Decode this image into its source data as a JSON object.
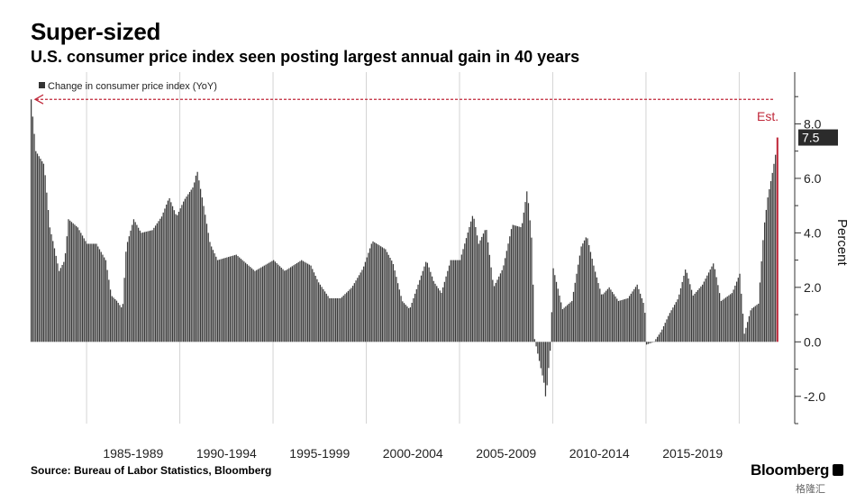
{
  "title": "Super-sized",
  "subtitle": "U.S. consumer price index seen posting largest annual gain in 40 years",
  "source": "Source: Bureau of Labor Statistics, Bloomberg",
  "brand": "Bloomberg",
  "watermark": "格隆汇",
  "colors": {
    "bar": "#3a3a3a",
    "accent": "#c0283a",
    "grid": "#d4d4d4",
    "axis": "#333333"
  },
  "chart_data": {
    "type": "bar",
    "title": "Super-sized",
    "subtitle": "U.S. consumer price index seen posting largest annual gain in 40 years",
    "legend": "Change in consumer price index (YoY)",
    "legend_position": "top-left",
    "ylabel": "Percent",
    "ylim": [
      -3.0,
      9.9
    ],
    "yticks": [
      -2,
      0,
      2,
      4,
      6,
      8
    ],
    "ytick_labels": [
      "-2.0",
      "0.0",
      "2.0",
      "4.0",
      "6.0",
      "8.0"
    ],
    "xlim": [
      1982.0,
      2022.3
    ],
    "xtick_positions": [
      1985,
      1990,
      1995,
      2000,
      2005,
      2010,
      2015,
      2020
    ],
    "period_labels": [
      "1985-1989",
      "1990-1994",
      "1995-1999",
      "2000-2004",
      "2005-2009",
      "2010-2014",
      "2015-2019"
    ],
    "period_centers": [
      1987.5,
      1992.5,
      1997.5,
      2002.5,
      2007.5,
      2012.5,
      2017.5
    ],
    "annotation": "Est.",
    "estimate_value": 7.5,
    "estimate_date": 2022.0,
    "reference_line": 8.9,
    "anchors": [
      [
        1982.0,
        8.9
      ],
      [
        1982.25,
        7.0
      ],
      [
        1982.7,
        6.5
      ],
      [
        1983.0,
        4.2
      ],
      [
        1983.2,
        3.6
      ],
      [
        1983.5,
        2.6
      ],
      [
        1983.8,
        3.0
      ],
      [
        1984.0,
        4.5
      ],
      [
        1984.5,
        4.2
      ],
      [
        1985.0,
        3.6
      ],
      [
        1985.5,
        3.6
      ],
      [
        1986.0,
        3.0
      ],
      [
        1986.3,
        1.7
      ],
      [
        1986.6,
        1.5
      ],
      [
        1986.9,
        1.2
      ],
      [
        1987.1,
        3.5
      ],
      [
        1987.5,
        4.5
      ],
      [
        1987.9,
        4.0
      ],
      [
        1988.5,
        4.1
      ],
      [
        1989.0,
        4.6
      ],
      [
        1989.4,
        5.3
      ],
      [
        1989.8,
        4.6
      ],
      [
        1990.2,
        5.2
      ],
      [
        1990.7,
        5.7
      ],
      [
        1990.9,
        6.3
      ],
      [
        1991.3,
        4.8
      ],
      [
        1991.6,
        3.6
      ],
      [
        1992.0,
        3.0
      ],
      [
        1993.0,
        3.2
      ],
      [
        1994.0,
        2.6
      ],
      [
        1995.0,
        3.0
      ],
      [
        1995.6,
        2.6
      ],
      [
        1996.5,
        3.0
      ],
      [
        1997.0,
        2.8
      ],
      [
        1997.4,
        2.2
      ],
      [
        1998.0,
        1.6
      ],
      [
        1998.6,
        1.6
      ],
      [
        1999.2,
        2.0
      ],
      [
        1999.8,
        2.7
      ],
      [
        2000.3,
        3.7
      ],
      [
        2001.0,
        3.4
      ],
      [
        2001.4,
        2.9
      ],
      [
        2001.9,
        1.5
      ],
      [
        2002.3,
        1.2
      ],
      [
        2002.7,
        2.0
      ],
      [
        2003.2,
        3.0
      ],
      [
        2003.6,
        2.2
      ],
      [
        2004.0,
        1.8
      ],
      [
        2004.5,
        3.0
      ],
      [
        2005.0,
        3.0
      ],
      [
        2005.7,
        4.7
      ],
      [
        2006.0,
        3.6
      ],
      [
        2006.4,
        4.2
      ],
      [
        2006.8,
        2.0
      ],
      [
        2007.3,
        2.7
      ],
      [
        2007.8,
        4.3
      ],
      [
        2008.3,
        4.2
      ],
      [
        2008.6,
        5.6
      ],
      [
        2008.85,
        3.7
      ],
      [
        2009.0,
        0.1
      ],
      [
        2009.5,
        -1.5
      ],
      [
        2009.6,
        -2.1
      ],
      [
        2009.85,
        -0.2
      ],
      [
        2010.0,
        2.7
      ],
      [
        2010.5,
        1.2
      ],
      [
        2011.0,
        1.5
      ],
      [
        2011.5,
        3.5
      ],
      [
        2011.8,
        3.9
      ],
      [
        2012.2,
        2.7
      ],
      [
        2012.6,
        1.7
      ],
      [
        2013.0,
        2.0
      ],
      [
        2013.5,
        1.5
      ],
      [
        2014.0,
        1.6
      ],
      [
        2014.5,
        2.1
      ],
      [
        2014.9,
        1.3
      ],
      [
        2015.0,
        -0.1
      ],
      [
        2015.4,
        0.0
      ],
      [
        2015.8,
        0.4
      ],
      [
        2016.2,
        1.0
      ],
      [
        2016.7,
        1.6
      ],
      [
        2017.1,
        2.7
      ],
      [
        2017.5,
        1.7
      ],
      [
        2018.0,
        2.1
      ],
      [
        2018.6,
        2.9
      ],
      [
        2019.0,
        1.5
      ],
      [
        2019.6,
        1.8
      ],
      [
        2020.0,
        2.5
      ],
      [
        2020.25,
        0.3
      ],
      [
        2020.6,
        1.2
      ],
      [
        2021.0,
        1.4
      ],
      [
        2021.3,
        4.2
      ],
      [
        2021.5,
        5.3
      ],
      [
        2021.75,
        6.2
      ],
      [
        2021.95,
        7.0
      ],
      [
        2022.0,
        7.5
      ]
    ]
  }
}
